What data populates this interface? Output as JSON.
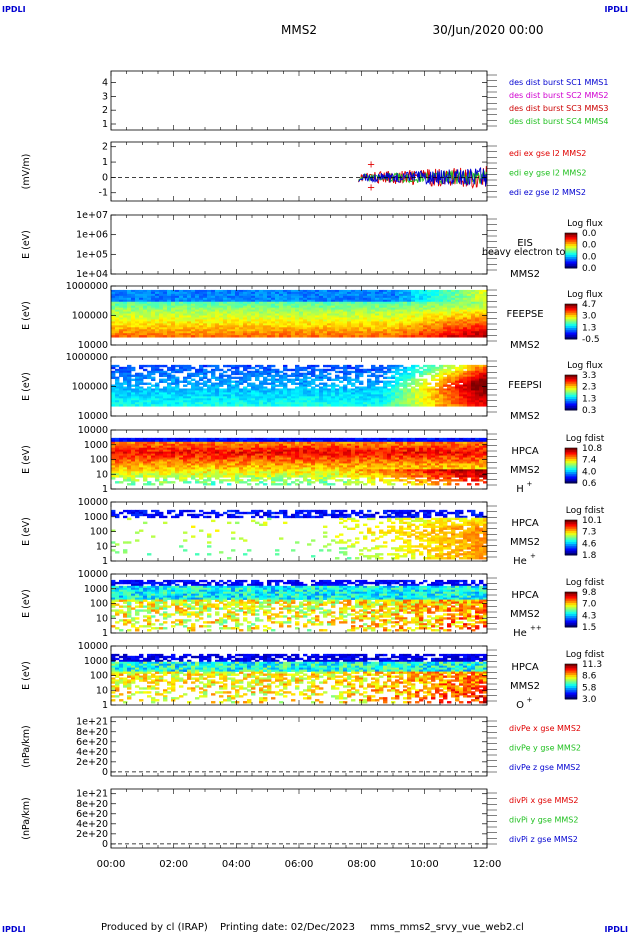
{
  "header": {
    "corner_label": "IPDLI",
    "spacecraft": "MMS2",
    "date": "30/Jun/2020 00:00"
  },
  "footer": {
    "produced": "Produced by cl (IRAP)",
    "printing": "Printing date: 02/Dec/2023",
    "filename": "mms_mms2_srvy_vue_web2.cl"
  },
  "colors": {
    "red": "#e00000",
    "green": "#20c020",
    "blue": "#0000d0",
    "magenta": "#d000d0",
    "dark_red": "#cc0000",
    "dashed": "#000000"
  },
  "chart_data": {
    "type": "multi-panel",
    "x_ticks": [
      "00:00",
      "02:00",
      "04:00",
      "06:00",
      "08:00",
      "10:00",
      "12:00"
    ],
    "xlim": [
      "00:00",
      "12:00"
    ],
    "panels": [
      {
        "type": "line",
        "ylabel": "",
        "y_ticks": [
          "1",
          "2",
          "3",
          "4"
        ],
        "ylim": [
          0.6,
          4.3
        ],
        "legend": [
          {
            "label": "des dist burst SC1 MMS1",
            "color": "#0000d0"
          },
          {
            "label": "des dist burst SC2 MMS2",
            "color": "#d000d0"
          },
          {
            "label": "des dist burst SC3 MMS3",
            "color": "#cc0000"
          },
          {
            "label": "des dist burst SC4 MMS4",
            "color": "#20c020"
          }
        ]
      },
      {
        "type": "line",
        "ylabel": "(mV/m)",
        "y_ticks": [
          "2",
          "1",
          "0",
          "-1"
        ],
        "ylim": [
          -1.5,
          2.6
        ],
        "legend": [
          {
            "label": "edi ex gse l2 MMS2",
            "color": "#e00000"
          },
          {
            "label": "edi ey gse l2 MMS2",
            "color": "#20c020"
          },
          {
            "label": "edi ez gse l2 MMS2",
            "color": "#0000d0"
          }
        ],
        "dashed_zero": true,
        "data_start_hour": 7.9,
        "series_amplitude": [
          1.3,
          0.9,
          1.1
        ]
      },
      {
        "type": "heatmap",
        "ylabel": "E (eV)",
        "y_ticks": [
          "1e+07",
          "1e+06",
          "1e+05",
          "1e+04"
        ],
        "instrument": [
          "EIS",
          "MMS2"
        ],
        "overlay_text": "heavy electron to",
        "colorbar": {
          "title": "Log flux",
          "ticks": [
            "0.0",
            "0.0",
            "0.0",
            "0.0"
          ]
        },
        "fill": "empty"
      },
      {
        "type": "heatmap",
        "ylabel": "E (eV)",
        "y_ticks": [
          "1000000",
          "100000",
          "10000"
        ],
        "instrument": [
          "FEEPSE",
          "MMS2"
        ],
        "colorbar": {
          "title": "Log flux",
          "ticks": [
            "4.7",
            "3.0",
            "1.3",
            "-0.5"
          ]
        },
        "fill": "feepse"
      },
      {
        "type": "heatmap",
        "ylabel": "E (eV)",
        "y_ticks": [
          "1000000",
          "100000",
          "10000"
        ],
        "instrument": [
          "FEEPSI",
          "MMS2"
        ],
        "colorbar": {
          "title": "Log flux",
          "ticks": [
            "3.3",
            "2.3",
            "1.3",
            "0.3"
          ]
        },
        "fill": "feepsi"
      },
      {
        "type": "heatmap",
        "ylabel": "E (eV)",
        "y_ticks": [
          "10000",
          "1000",
          "100",
          "10",
          "1"
        ],
        "instrument": [
          "HPCA",
          "MMS2"
        ],
        "species": "H",
        "charge": "+",
        "colorbar": {
          "title": "Log fdist",
          "ticks": [
            "10.8",
            "7.4",
            "4.0",
            "0.6"
          ]
        },
        "fill": "hplus"
      },
      {
        "type": "heatmap",
        "ylabel": "E (eV)",
        "y_ticks": [
          "10000",
          "1000",
          "100",
          "10",
          "1"
        ],
        "instrument": [
          "HPCA",
          "MMS2"
        ],
        "species": "He",
        "charge": "+",
        "colorbar": {
          "title": "Log fdist",
          "ticks": [
            "10.1",
            "7.3",
            "4.6",
            "1.8"
          ]
        },
        "fill": "heplus"
      },
      {
        "type": "heatmap",
        "ylabel": "E (eV)",
        "y_ticks": [
          "10000",
          "1000",
          "100",
          "10",
          "1"
        ],
        "instrument": [
          "HPCA",
          "MMS2"
        ],
        "species": "He",
        "charge": "++",
        "colorbar": {
          "title": "Log fdist",
          "ticks": [
            "9.8",
            "7.0",
            "4.3",
            "1.5"
          ]
        },
        "fill": "heplusplus"
      },
      {
        "type": "heatmap",
        "ylabel": "E (eV)",
        "y_ticks": [
          "10000",
          "1000",
          "100",
          "10",
          "1"
        ],
        "instrument": [
          "HPCA",
          "MMS2"
        ],
        "species": "O",
        "charge": "+",
        "colorbar": {
          "title": "Log fdist",
          "ticks": [
            "11.3",
            "8.6",
            "5.8",
            "3.0"
          ]
        },
        "fill": "oplus"
      },
      {
        "type": "line",
        "ylabel": "(nPa/km)",
        "y_ticks": [
          "1e+21",
          "8e+20",
          "6e+20",
          "4e+20",
          "2e+20",
          "0"
        ],
        "ylim": [
          -1e+20,
          1.05e+21
        ],
        "legend": [
          {
            "label": "divPe x gse MMS2",
            "color": "#e00000"
          },
          {
            "label": "divPe y gse MMS2",
            "color": "#20c020"
          },
          {
            "label": "divPe z gse MMS2",
            "color": "#0000d0"
          }
        ],
        "dashed_zero": true
      },
      {
        "type": "line",
        "ylabel": "(nPa/km)",
        "y_ticks": [
          "1e+21",
          "8e+20",
          "6e+20",
          "4e+20",
          "2e+20",
          "0"
        ],
        "ylim": [
          -1e+20,
          1.05e+21
        ],
        "legend": [
          {
            "label": "divPi x gse MMS2",
            "color": "#e00000"
          },
          {
            "label": "divPi y gse MMS2",
            "color": "#20c020"
          },
          {
            "label": "divPi z gse MMS2",
            "color": "#0000d0"
          }
        ],
        "dashed_zero": true
      }
    ]
  }
}
